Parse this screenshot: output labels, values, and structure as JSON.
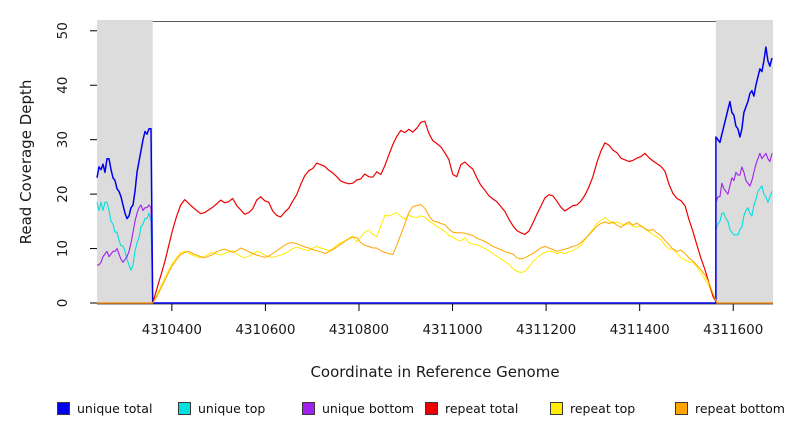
{
  "figure": {
    "xlabel": "Coordinate in Reference Genome",
    "ylabel": "Read Coverage Depth"
  },
  "chart_data": {
    "type": "line",
    "title": "",
    "xlabel": "Coordinate in Reference Genome",
    "ylabel": "Read Coverage Depth",
    "xlim": [
      4310240,
      4311685
    ],
    "ylim": [
      0,
      51.8
    ],
    "x_ticks": [
      4310400,
      4310600,
      4310800,
      4311000,
      4311200,
      4311400,
      4311600
    ],
    "y_ticks": [
      0,
      10,
      20,
      30,
      40,
      50
    ],
    "grid": false,
    "background": "#ffffff",
    "plot_border_color": "#5a5a5a",
    "tick_color": "#000000",
    "shaded_region_color": "#dcdcdc",
    "shaded_regions": [
      {
        "from": 4310240,
        "to": 4310359
      },
      {
        "from": 4311563,
        "to": 4311685
      }
    ],
    "legend": {
      "position": "bottom",
      "entries": [
        {
          "label": "unique total",
          "color": "#0000ee"
        },
        {
          "label": "unique top",
          "color": "#00e0e0"
        },
        {
          "label": "unique bottom",
          "color": "#a020f0"
        },
        {
          "label": "repeat total",
          "color": "#ee0000"
        },
        {
          "label": "repeat top",
          "color": "#ffec00"
        },
        {
          "label": "repeat bottom",
          "color": "#ffa500"
        }
      ]
    },
    "series": [
      {
        "name": "unique top",
        "color": "#00e0e0",
        "width": 1.1,
        "segments": [
          {
            "x_start": 4310240,
            "x_step": 4.277,
            "values": [
              18.5,
              17,
              18.5,
              17,
              18.5,
              18.5,
              17,
              15,
              14.5,
              13,
              13,
              11.5,
              10.5,
              10.5,
              9.5,
              8,
              7,
              6,
              7,
              9.5,
              11,
              12,
              14,
              14.5,
              15.5,
              15.5,
              16.5,
              15
            ]
          },
          {
            "x_start": 4310359,
            "x_step": 1204,
            "values": [
              0,
              0
            ]
          },
          {
            "x_start": 4311563,
            "x_step": 4.277,
            "values": [
              13.5,
              14.5,
              15,
              16.5,
              16.5,
              15.5,
              15,
              13.5,
              13,
              12.5,
              12.5,
              12.5,
              13.5,
              14,
              16,
              17,
              17.5,
              16.5,
              16,
              18,
              19,
              20.5,
              21,
              21.5,
              20,
              19.5,
              18.5,
              19.5,
              20.5
            ]
          }
        ]
      },
      {
        "name": "unique bottom",
        "color": "#a020f0",
        "width": 1.1,
        "segments": [
          {
            "x_start": 4310240,
            "x_step": 4.277,
            "values": [
              7,
              7,
              7.5,
              8.5,
              9,
              9.5,
              8.5,
              9,
              9.5,
              9.5,
              10,
              9,
              8,
              7.5,
              8,
              8.5,
              9.5,
              11,
              13,
              15,
              16.5,
              17.5,
              18,
              17,
              17.5,
              17.5,
              18,
              17.5
            ]
          },
          {
            "x_start": 4310359,
            "x_step": 1204,
            "values": [
              0,
              0
            ]
          },
          {
            "x_start": 4311563,
            "x_step": 4.277,
            "values": [
              18.5,
              19.5,
              19.5,
              22,
              21,
              20.5,
              20,
              21.5,
              23,
              22.5,
              24,
              23.5,
              23.5,
              25,
              24,
              22.5,
              22,
              21.5,
              22.5,
              24,
              25.5,
              26.5,
              27.5,
              26.5,
              27,
              27.5,
              26.5,
              26,
              27.5
            ]
          }
        ]
      },
      {
        "name": "unique total",
        "color": "#0000ee",
        "width": 1.5,
        "segments": [
          {
            "x_start": 4310240,
            "x_step": 4.277,
            "values": [
              23,
              25,
              24.5,
              25.5,
              24,
              26.5,
              26.5,
              24.5,
              23,
              22.5,
              21,
              20.5,
              19.5,
              18,
              16.5,
              15.5,
              16,
              17.5,
              18,
              20.5,
              24,
              26,
              28,
              30,
              31.5,
              31,
              32,
              32
            ]
          },
          {
            "x_start": 4310359,
            "x_step": 1204,
            "values": [
              0,
              0
            ]
          },
          {
            "x_start": 4311563,
            "x_step": 4.277,
            "values": [
              30.5,
              30,
              29.5,
              31,
              32.5,
              34,
              35.5,
              37,
              35,
              34.5,
              32.5,
              32,
              30.5,
              32,
              35,
              36,
              37,
              38.5,
              39,
              38,
              40,
              41.5,
              43,
              42.5,
              44.5,
              47,
              44.5,
              43.5,
              45
            ]
          }
        ]
      },
      {
        "name": "repeat top",
        "color": "#ffec00",
        "width": 1,
        "segments": [
          {
            "x_start": 4310240,
            "x_step": 119,
            "values": [
              0,
              0
            ]
          },
          {
            "x_start": 4310359,
            "x_step": 8.555,
            "values": [
              0,
              1.5,
              3,
              4.6,
              6.1,
              7.4,
              8.4,
              9.2,
              9.5,
              9.1,
              8.8,
              8.5,
              8.3,
              8.6,
              9,
              9.3,
              9,
              8.8,
              9.1,
              9.4,
              9.6,
              9,
              8.6,
              8.3,
              8.6,
              9,
              9.5,
              9.3,
              8.8,
              8.5,
              8.4,
              8.6,
              8.8,
              9.1,
              9.5,
              10,
              10.3,
              10,
              9.8,
              9.6,
              10.1,
              10.4,
              10.1,
              9.9,
              9.6,
              10,
              10.6,
              11.1,
              11.4,
              11.9,
              12.3,
              11.2,
              12.1,
              13,
              13.4,
              12.6,
              12.2,
              14.1,
              16.1,
              16,
              16.3,
              16.6,
              15.9,
              15.4,
              16.1,
              15.8,
              15.7,
              16,
              15.8,
              15.1,
              14.6,
              14.1,
              13.6,
              13.2,
              12.4,
              12.1,
              11.6,
              11.4,
              12,
              11.1,
              10.8,
              10.7,
              10.4,
              10,
              9.6,
              9.1,
              8.6,
              8.1,
              7.6,
              7.1,
              6.3,
              5.8,
              5.6,
              5.8,
              6.6,
              7.6,
              8.3,
              8.9,
              9.3,
              9.5,
              9.4,
              9.1,
              9.3,
              9.1,
              9.4,
              9.6,
              10.1,
              10.6,
              11.6,
              12.6,
              13.6,
              14.6,
              15.2,
              15.7,
              15.1,
              14.6,
              14.9,
              14.6,
              14.3,
              14.6,
              14.1,
              13.9,
              14.3,
              13.6,
              13.1,
              12.6,
              12.1,
              11.6,
              10.6,
              9.9,
              9.9,
              9.1,
              8.3,
              7.9,
              7.5,
              7.5,
              6.6,
              5.6,
              4.3,
              3.1,
              1.3,
              0
            ]
          },
          {
            "x_start": 4311565,
            "x_step": 120,
            "values": [
              0,
              0
            ]
          }
        ]
      },
      {
        "name": "repeat total",
        "color": "#ee0000",
        "width": 1.2,
        "segments": [
          {
            "x_start": 4310240,
            "x_step": 119,
            "values": [
              0,
              0
            ]
          },
          {
            "x_start": 4310359,
            "x_step": 8.555,
            "values": [
              0,
              2.5,
              5,
              7.5,
              10.5,
              13.5,
              16,
              18,
              19,
              18.3,
              17.6,
              17,
              16.4,
              16.6,
              17.1,
              17.6,
              18.2,
              18.9,
              18.4,
              18.6,
              19.2,
              17.9,
              17.1,
              16.3,
              16.6,
              17.3,
              18.9,
              19.5,
              18.8,
              18.5,
              16.9,
              16.1,
              15.8,
              16.7,
              17.4,
              18.7,
              19.9,
              21.8,
              23.4,
              24.3,
              24.7,
              25.7,
              25.4,
              25.1,
              24.4,
              23.9,
              23.2,
              22.4,
              22.1,
              21.9,
              22,
              22.6,
              22.8,
              23.7,
              23.2,
              23.1,
              24.1,
              23.6,
              25.2,
              27.2,
              29.1,
              30.6,
              31.7,
              31.3,
              31.9,
              31.4,
              32.1,
              33.2,
              33.4,
              31.2,
              29.8,
              29.3,
              28.7,
              27.6,
              26.4,
              23.6,
              23.2,
              25.4,
              25.9,
              25.2,
              24.6,
              23,
              21.6,
              20.7,
              19.7,
              19.1,
              18.6,
              17.7,
              16.8,
              15.4,
              14.2,
              13.3,
              12.9,
              12.6,
              13.2,
              14.7,
              16.3,
              17.8,
              19.3,
              19.9,
              19.7,
              18.7,
              17.6,
              16.9,
              17.4,
              17.9,
              18,
              18.7,
              19.8,
              21.3,
              23.2,
              25.8,
              27.9,
              29.4,
              29,
              28.1,
              27.6,
              26.6,
              26.3,
              26,
              26.2,
              26.6,
              26.9,
              27.5,
              26.7,
              26.1,
              25.6,
              25.1,
              24.2,
              21.8,
              20.1,
              19.2,
              18.8,
              17.9,
              15.3,
              13.1,
              10.6,
              8.2,
              6.1,
              3.7,
              1.2,
              0
            ]
          },
          {
            "x_start": 4311565,
            "x_step": 120,
            "values": [
              0,
              0
            ]
          }
        ]
      },
      {
        "name": "repeat bottom",
        "color": "#ffa500",
        "width": 1,
        "segments": [
          {
            "x_start": 4310240,
            "x_step": 119,
            "values": [
              0,
              0
            ]
          },
          {
            "x_start": 4310359,
            "x_step": 8.555,
            "values": [
              0,
              1.1,
              2.6,
              4.1,
              5.6,
              7,
              8,
              8.9,
              9.3,
              9.5,
              9.1,
              8.8,
              8.5,
              8.3,
              8.6,
              8.9,
              9.4,
              9.7,
              9.9,
              9.6,
              9.3,
              9.6,
              10.1,
              9.8,
              9.4,
              9.1,
              8.8,
              8.6,
              8.4,
              8.6,
              9.1,
              9.6,
              10.1,
              10.6,
              11,
              11.1,
              10.9,
              10.6,
              10.3,
              10.1,
              9.8,
              9.6,
              9.4,
              9.1,
              9.4,
              9.8,
              10.3,
              10.8,
              11.3,
              11.8,
              12.1,
              12,
              11.1,
              10.6,
              10.4,
              10.1,
              10.1,
              9.6,
              9.3,
              9.1,
              8.9,
              10.6,
              12.6,
              14.5,
              16.6,
              17.7,
              17.9,
              18.1,
              17.4,
              16.1,
              15.1,
              14.9,
              14.6,
              14.4,
              13.6,
              13,
              12.9,
              12.9,
              12.8,
              12.6,
              12.4,
              11.9,
              11.6,
              11.3,
              10.9,
              10.4,
              10.1,
              9.8,
              9.4,
              9.2,
              9,
              8.3,
              8.1,
              8.3,
              8.7,
              9.1,
              9.6,
              10.1,
              10.4,
              10.1,
              9.8,
              9.5,
              9.7,
              9.9,
              10.1,
              10.4,
              10.6,
              11.1,
              11.8,
              12.5,
              13.3,
              14.1,
              14.6,
              14.9,
              14.6,
              14.9,
              14.3,
              13.9,
              14.5,
              14.9,
              14.3,
              14.7,
              14.1,
              13.7,
              13.3,
              13.5,
              12.9,
              12.3,
              11.5,
              10.7,
              9.9,
              9.5,
              9.7,
              9.1,
              8.3,
              7.7,
              6.9,
              6.1,
              5.1,
              3.7,
              1.7,
              0
            ]
          },
          {
            "x_start": 4311565,
            "x_step": 120,
            "values": [
              0,
              0
            ]
          }
        ]
      }
    ]
  }
}
